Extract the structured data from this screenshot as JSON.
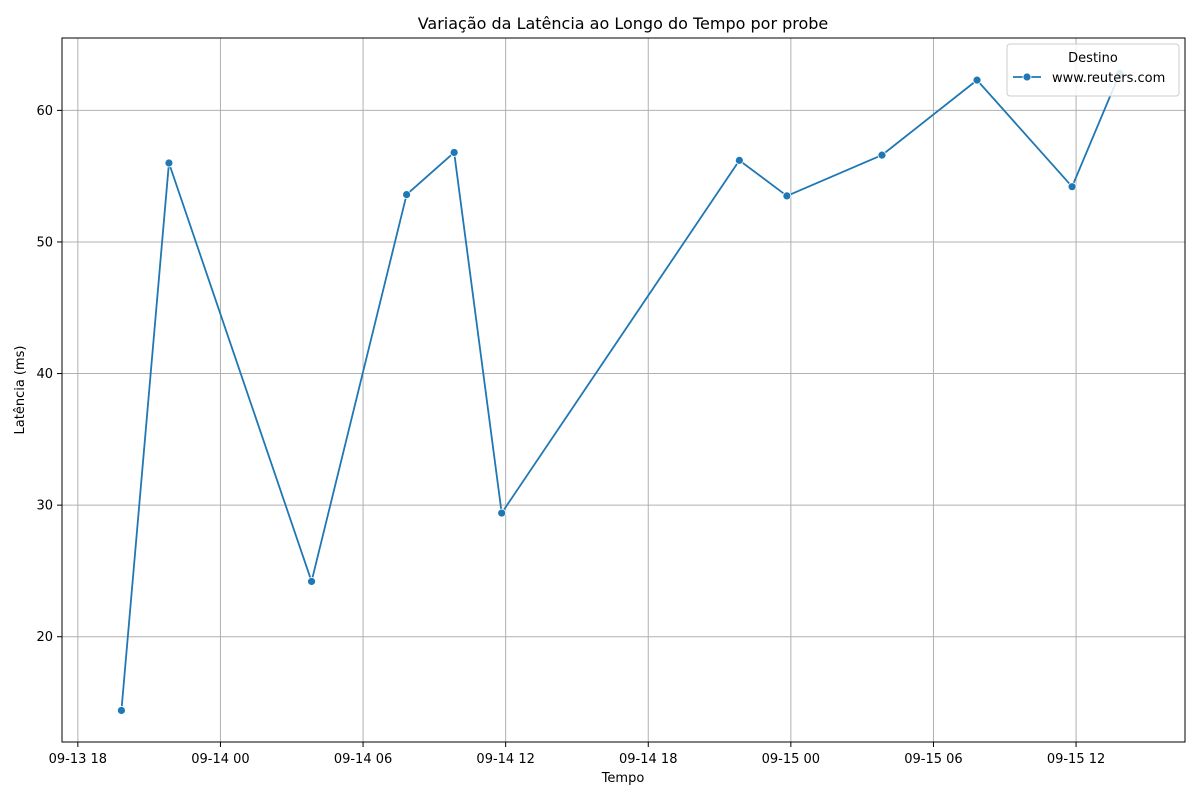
{
  "chart_data": {
    "type": "line",
    "title": "Variação da Latência ao Longo do Tempo por probe",
    "xlabel": "Tempo",
    "ylabel": "Latência (ms)",
    "x_is_datetime": true,
    "xlim": [
      "2025-09-13T17:20:00",
      "2025-09-15T16:35:00"
    ],
    "ylim": [
      12,
      65.5
    ],
    "grid": true,
    "legend": {
      "title": "Destino",
      "placement": "upper-right"
    },
    "x_ticks": [
      {
        "value": "2025-09-13T18:00:00",
        "label": "09-13 18"
      },
      {
        "value": "2025-09-14T00:00:00",
        "label": "09-14 00"
      },
      {
        "value": "2025-09-14T06:00:00",
        "label": "09-14 06"
      },
      {
        "value": "2025-09-14T12:00:00",
        "label": "09-14 12"
      },
      {
        "value": "2025-09-14T18:00:00",
        "label": "09-14 18"
      },
      {
        "value": "2025-09-15T00:00:00",
        "label": "09-15 00"
      },
      {
        "value": "2025-09-15T06:00:00",
        "label": "09-15 06"
      },
      {
        "value": "2025-09-15T12:00:00",
        "label": "09-15 12"
      }
    ],
    "y_ticks": [
      {
        "value": 20,
        "label": "20"
      },
      {
        "value": 30,
        "label": "30"
      },
      {
        "value": 40,
        "label": "40"
      },
      {
        "value": 50,
        "label": "50"
      },
      {
        "value": 60,
        "label": "60"
      }
    ],
    "series": [
      {
        "name": "www.reuters.com",
        "color": "#1f77b4",
        "marker": "circle",
        "points": [
          {
            "x": "2025-09-13T19:50:00",
            "y": 14.4
          },
          {
            "x": "2025-09-13T21:50:00",
            "y": 56.0
          },
          {
            "x": "2025-09-14T03:50:00",
            "y": 24.2
          },
          {
            "x": "2025-09-14T07:50:00",
            "y": 53.6
          },
          {
            "x": "2025-09-14T09:50:00",
            "y": 56.8
          },
          {
            "x": "2025-09-14T11:50:00",
            "y": 29.4
          },
          {
            "x": "2025-09-14T21:50:00",
            "y": 56.2
          },
          {
            "x": "2025-09-14T23:50:00",
            "y": 53.5
          },
          {
            "x": "2025-09-15T03:50:00",
            "y": 56.6
          },
          {
            "x": "2025-09-15T07:50:00",
            "y": 62.3
          },
          {
            "x": "2025-09-15T11:50:00",
            "y": 54.2
          },
          {
            "x": "2025-09-15T13:50:00",
            "y": 62.8
          }
        ]
      }
    ]
  }
}
